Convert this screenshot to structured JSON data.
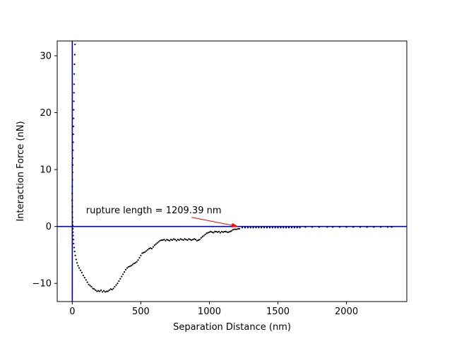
{
  "chart_data": {
    "type": "scatter",
    "title": "",
    "xlabel": "Separation Distance (nm)",
    "ylabel": "Interaction Force (nN)",
    "xlim": [
      -110,
      2440
    ],
    "ylim": [
      -13.2,
      32.6
    ],
    "xticks": [
      0,
      500,
      1000,
      1500,
      2000
    ],
    "yticks": [
      -10,
      0,
      10,
      20,
      30
    ],
    "grid": false,
    "legend": "none",
    "reference_lines": {
      "horizontal_y": 0,
      "vertical_x": 0,
      "color": "#0000cc"
    },
    "annotation": {
      "text": "rupture length = 1209.39 nm",
      "text_x": 100,
      "text_y": 2.3,
      "arrow_to_x": 1209.39,
      "arrow_to_y": 0,
      "arrow_from_x": 870,
      "arrow_from_y": 1.6,
      "color": "#ff0000"
    },
    "series": [
      {
        "marker_color": "#000000",
        "points": [
          [
            20,
            32.0
          ],
          [
            18,
            30.2
          ],
          [
            16,
            28.5
          ],
          [
            14,
            26.8
          ],
          [
            13,
            25.0
          ],
          [
            12,
            23.5
          ],
          [
            11,
            22.0
          ],
          [
            10,
            20.5
          ],
          [
            9,
            19.0
          ],
          [
            8,
            17.6
          ],
          [
            7,
            16.2
          ],
          [
            6,
            14.8
          ],
          [
            5,
            13.4
          ],
          [
            4,
            12.0
          ],
          [
            3,
            10.8
          ],
          [
            2,
            9.5
          ],
          [
            1,
            8.2
          ],
          [
            0,
            7.0
          ],
          [
            -1,
            5.8
          ],
          [
            -1,
            4.6
          ],
          [
            0,
            3.5
          ],
          [
            0,
            2.5
          ],
          [
            1,
            1.6
          ],
          [
            2,
            0.8
          ],
          [
            3,
            0.2
          ],
          [
            4,
            -0.4
          ],
          [
            5,
            -1.0
          ],
          [
            6,
            -1.6
          ],
          [
            8,
            -2.3
          ],
          [
            10,
            -3.0
          ],
          [
            13,
            -3.7
          ],
          [
            17,
            -4.4
          ],
          [
            22,
            -5.1
          ],
          [
            28,
            -5.8
          ],
          [
            35,
            -6.4
          ],
          [
            42,
            -6.9
          ],
          [
            50,
            -7.3
          ],
          [
            60,
            -7.7
          ],
          [
            70,
            -8.1
          ],
          [
            80,
            -8.6
          ],
          [
            90,
            -9.0
          ],
          [
            100,
            -9.4
          ],
          [
            110,
            -9.8
          ],
          [
            120,
            -10.2
          ],
          [
            130,
            -10.4
          ],
          [
            140,
            -10.6
          ],
          [
            150,
            -10.9
          ],
          [
            160,
            -11.0
          ],
          [
            170,
            -11.2
          ],
          [
            180,
            -11.4
          ],
          [
            190,
            -11.3
          ],
          [
            200,
            -11.4
          ],
          [
            210,
            -11.2
          ],
          [
            220,
            -11.5
          ],
          [
            230,
            -11.3
          ],
          [
            240,
            -11.5
          ],
          [
            250,
            -11.4
          ],
          [
            260,
            -11.4
          ],
          [
            270,
            -11.2
          ],
          [
            280,
            -11.0
          ],
          [
            290,
            -11.1
          ],
          [
            300,
            -10.9
          ],
          [
            310,
            -10.6
          ],
          [
            320,
            -10.3
          ],
          [
            330,
            -10.0
          ],
          [
            340,
            -9.6
          ],
          [
            350,
            -9.2
          ],
          [
            360,
            -8.8
          ],
          [
            370,
            -8.4
          ],
          [
            380,
            -8.0
          ],
          [
            390,
            -7.6
          ],
          [
            400,
            -7.3
          ],
          [
            410,
            -7.1
          ],
          [
            420,
            -7.0
          ],
          [
            430,
            -6.9
          ],
          [
            440,
            -6.7
          ],
          [
            450,
            -6.5
          ],
          [
            460,
            -6.4
          ],
          [
            470,
            -6.2
          ],
          [
            480,
            -5.9
          ],
          [
            490,
            -5.5
          ],
          [
            500,
            -5.1
          ],
          [
            510,
            -4.7
          ],
          [
            520,
            -4.6
          ],
          [
            530,
            -4.5
          ],
          [
            540,
            -4.3
          ],
          [
            550,
            -4.1
          ],
          [
            560,
            -3.9
          ],
          [
            570,
            -3.8
          ],
          [
            580,
            -3.9
          ],
          [
            590,
            -3.6
          ],
          [
            600,
            -3.3
          ],
          [
            610,
            -3.1
          ],
          [
            620,
            -2.9
          ],
          [
            630,
            -2.7
          ],
          [
            640,
            -2.5
          ],
          [
            650,
            -2.4
          ],
          [
            660,
            -2.4
          ],
          [
            670,
            -2.3
          ],
          [
            680,
            -2.5
          ],
          [
            690,
            -2.3
          ],
          [
            700,
            -2.4
          ],
          [
            710,
            -2.5
          ],
          [
            720,
            -2.3
          ],
          [
            730,
            -2.4
          ],
          [
            740,
            -2.2
          ],
          [
            750,
            -2.3
          ],
          [
            760,
            -2.5
          ],
          [
            770,
            -2.3
          ],
          [
            780,
            -2.4
          ],
          [
            790,
            -2.2
          ],
          [
            800,
            -2.3
          ],
          [
            810,
            -2.4
          ],
          [
            820,
            -2.2
          ],
          [
            830,
            -2.3
          ],
          [
            840,
            -2.4
          ],
          [
            850,
            -2.2
          ],
          [
            860,
            -2.3
          ],
          [
            870,
            -2.4
          ],
          [
            880,
            -2.3
          ],
          [
            890,
            -2.2
          ],
          [
            900,
            -2.3
          ],
          [
            910,
            -2.5
          ],
          [
            920,
            -2.4
          ],
          [
            930,
            -2.3
          ],
          [
            940,
            -2.0
          ],
          [
            950,
            -1.8
          ],
          [
            960,
            -1.6
          ],
          [
            970,
            -1.4
          ],
          [
            980,
            -1.2
          ],
          [
            990,
            -1.1
          ],
          [
            1000,
            -1.0
          ],
          [
            1010,
            -0.9
          ],
          [
            1020,
            -1.0
          ],
          [
            1030,
            -1.1
          ],
          [
            1040,
            -0.9
          ],
          [
            1050,
            -0.9
          ],
          [
            1060,
            -1.0
          ],
          [
            1070,
            -0.9
          ],
          [
            1080,
            -1.1
          ],
          [
            1090,
            -0.9
          ],
          [
            1100,
            -1.0
          ],
          [
            1110,
            -0.9
          ],
          [
            1120,
            -0.9
          ],
          [
            1130,
            -1.0
          ],
          [
            1140,
            -1.0
          ],
          [
            1150,
            -0.9
          ],
          [
            1160,
            -0.8
          ],
          [
            1170,
            -0.6
          ],
          [
            1180,
            -0.5
          ],
          [
            1190,
            -0.5
          ],
          [
            1200,
            -0.5
          ],
          [
            1210,
            -0.4
          ],
          [
            1220,
            -0.4
          ],
          [
            1240,
            -0.2
          ],
          [
            1260,
            -0.2
          ],
          [
            1280,
            -0.2
          ],
          [
            1300,
            -0.2
          ],
          [
            1320,
            -0.2
          ],
          [
            1340,
            -0.2
          ],
          [
            1360,
            -0.2
          ],
          [
            1380,
            -0.2
          ],
          [
            1400,
            -0.2
          ],
          [
            1420,
            -0.2
          ],
          [
            1440,
            -0.2
          ],
          [
            1460,
            -0.2
          ],
          [
            1480,
            -0.2
          ],
          [
            1500,
            -0.2
          ],
          [
            1520,
            -0.2
          ],
          [
            1540,
            -0.2
          ],
          [
            1560,
            -0.2
          ],
          [
            1580,
            -0.2
          ],
          [
            1600,
            -0.2
          ],
          [
            1620,
            -0.2
          ],
          [
            1640,
            -0.2
          ],
          [
            1660,
            -0.2
          ],
          [
            1700,
            -0.1
          ],
          [
            1750,
            -0.1
          ],
          [
            1800,
            -0.1
          ],
          [
            1860,
            -0.1
          ],
          [
            1900,
            -0.1
          ],
          [
            1950,
            -0.1
          ],
          [
            2000,
            -0.1
          ],
          [
            2050,
            -0.1
          ],
          [
            2100,
            -0.1
          ],
          [
            2150,
            -0.1
          ],
          [
            2200,
            -0.1
          ],
          [
            2250,
            -0.1
          ],
          [
            2300,
            -0.1
          ],
          [
            2330,
            -0.1
          ]
        ]
      }
    ]
  }
}
